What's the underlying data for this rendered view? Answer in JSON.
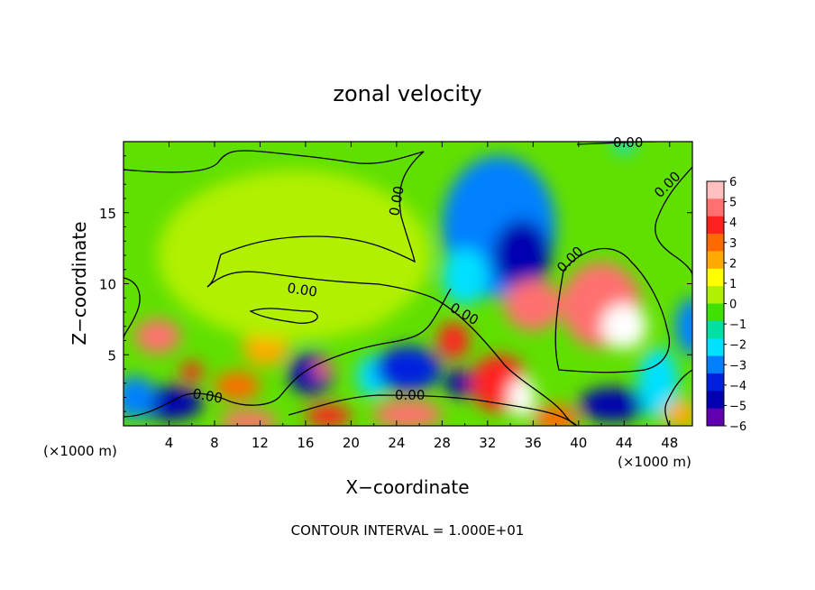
{
  "chart_data": {
    "type": "heatmap",
    "title": "zonal velocity",
    "xlabel": "X−coordinate",
    "ylabel": "Z−coordinate",
    "x_unit_left": "(×1000 m)",
    "x_unit_right": "(×1000 m)",
    "xlim": [
      0,
      50
    ],
    "ylim": [
      0,
      20
    ],
    "x_ticks": [
      4,
      8,
      12,
      16,
      20,
      24,
      28,
      32,
      36,
      40,
      44,
      48
    ],
    "y_ticks": [
      5,
      10,
      15
    ],
    "x_tick_labels": [
      "4",
      "8",
      "12",
      "16",
      "20",
      "24",
      "28",
      "32",
      "36",
      "40",
      "44",
      "48"
    ],
    "y_tick_labels": [
      "5",
      "10",
      "15"
    ],
    "colorbar": {
      "levels": [
        6,
        5,
        4,
        3,
        2,
        1,
        0,
        -1,
        -2,
        -3,
        -4,
        -5,
        -6
      ],
      "labels": [
        "6",
        "5",
        "4",
        "3",
        "2",
        "1",
        "0",
        "−1",
        "−2",
        "−3",
        "−4",
        "−5",
        "−6"
      ],
      "colors": [
        "#ffc0c0",
        "#ff7070",
        "#ff2020",
        "#ff6a00",
        "#ffaa00",
        "#ffff00",
        "#b0f000",
        "#40e000",
        "#00e0a0",
        "#00e0ff",
        "#0080ff",
        "#0020e0",
        "#0000b0",
        "#6000b0"
      ]
    },
    "contour_label": "0.00",
    "footer": "CONTOUR INTERVAL = 1.000E+01",
    "field_blobs": [
      {
        "x": 33,
        "y": 14,
        "rx": 5,
        "ry": 5,
        "v": -3.5
      },
      {
        "x": 35,
        "y": 12,
        "rx": 2.5,
        "ry": 2.5,
        "v": -5.5
      },
      {
        "x": 36,
        "y": 8.5,
        "rx": 2.5,
        "ry": 1.8,
        "v": 6
      },
      {
        "x": 42,
        "y": 8.5,
        "rx": 3.5,
        "ry": 3,
        "v": 6
      },
      {
        "x": 44,
        "y": 7,
        "rx": 2,
        "ry": 1.6,
        "v": 6.5
      },
      {
        "x": 3,
        "y": 6.3,
        "rx": 2,
        "ry": 1.2,
        "v": 5.5
      },
      {
        "x": 4,
        "y": 1.6,
        "rx": 3,
        "ry": 1.2,
        "v": -5
      },
      {
        "x": 1,
        "y": 2,
        "rx": 1.8,
        "ry": 1.5,
        "v": -3
      },
      {
        "x": 6,
        "y": 3.8,
        "rx": 1,
        "ry": 0.7,
        "v": 4.5
      },
      {
        "x": 10,
        "y": 2.8,
        "rx": 2,
        "ry": 1,
        "v": 4
      },
      {
        "x": 12.5,
        "y": 5.5,
        "rx": 2,
        "ry": 1.3,
        "v": 2.5
      },
      {
        "x": 16.5,
        "y": 3.7,
        "rx": 2,
        "ry": 1.5,
        "v": -5
      },
      {
        "x": 17.5,
        "y": 4,
        "rx": 0.8,
        "ry": 0.6,
        "v": 6
      },
      {
        "x": 22,
        "y": 3.5,
        "rx": 1.5,
        "ry": 1.5,
        "v": -2
      },
      {
        "x": 25,
        "y": 4,
        "rx": 3,
        "ry": 1.6,
        "v": -4
      },
      {
        "x": 29,
        "y": 6,
        "rx": 1.4,
        "ry": 1.3,
        "v": 5
      },
      {
        "x": 29.5,
        "y": 3,
        "rx": 1.2,
        "ry": 1,
        "v": -5
      },
      {
        "x": 33,
        "y": 3,
        "rx": 2.5,
        "ry": 2,
        "v": 5
      },
      {
        "x": 35,
        "y": 2,
        "rx": 1.2,
        "ry": 1.4,
        "v": 7
      },
      {
        "x": 25,
        "y": 0.8,
        "rx": 3,
        "ry": 1,
        "v": 6
      },
      {
        "x": 11,
        "y": 0.3,
        "rx": 2.5,
        "ry": 0.8,
        "v": 6
      },
      {
        "x": 18,
        "y": 0.7,
        "rx": 2,
        "ry": 0.8,
        "v": 5
      },
      {
        "x": 43,
        "y": 1.5,
        "rx": 3,
        "ry": 1.2,
        "v": -5
      },
      {
        "x": 38,
        "y": 0.5,
        "rx": 2,
        "ry": 1,
        "v": 4
      },
      {
        "x": 47,
        "y": 3,
        "rx": 1.8,
        "ry": 2.5,
        "v": -2.5
      },
      {
        "x": 50,
        "y": 7,
        "rx": 1.5,
        "ry": 2,
        "v": -3
      },
      {
        "x": 44,
        "y": 19.7,
        "rx": 1,
        "ry": 0.5,
        "v": -2
      },
      {
        "x": 49,
        "y": 0.8,
        "rx": 1.5,
        "ry": 1,
        "v": 3
      },
      {
        "x": 20,
        "y": 7.5,
        "rx": 2.5,
        "ry": 0.8,
        "v": 2.5
      },
      {
        "x": 15,
        "y": 12,
        "rx": 12,
        "ry": 6,
        "v": 0.8
      },
      {
        "x": 30,
        "y": 10.5,
        "rx": 2,
        "ry": 2,
        "v": -2.5
      }
    ]
  }
}
